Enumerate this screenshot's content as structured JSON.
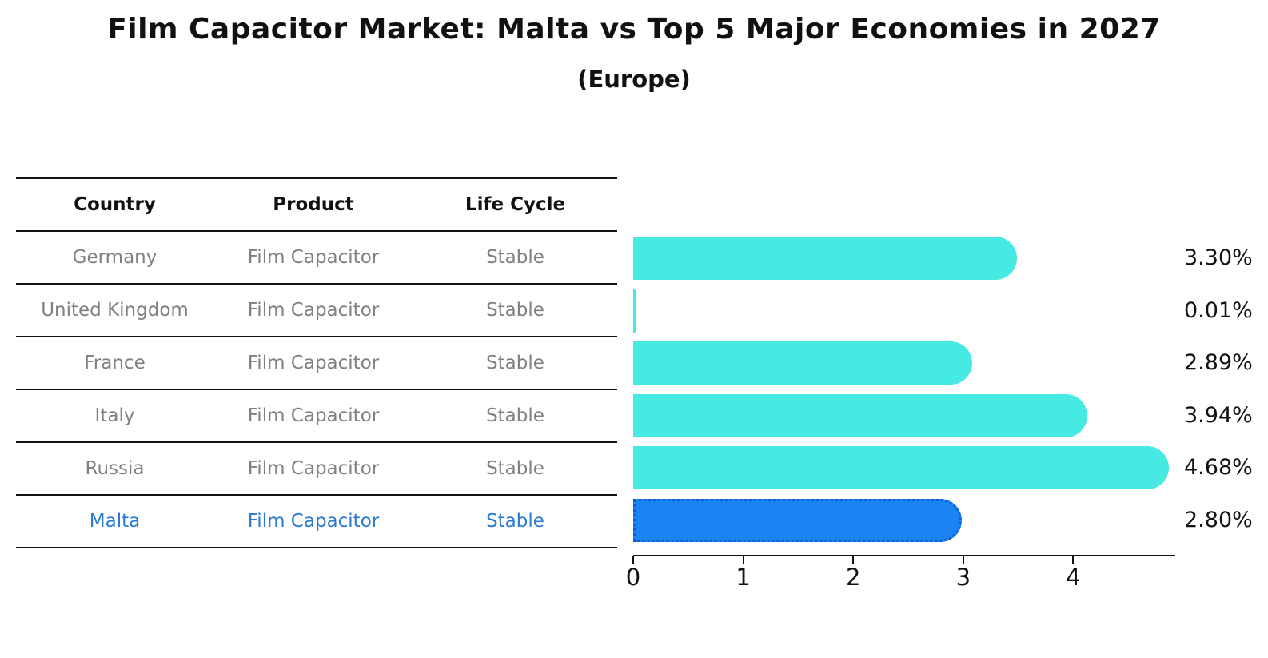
{
  "title": "Film Capacitor Market: Malta vs Top 5 Major Economies in 2027",
  "subtitle": "(Europe)",
  "table": {
    "headers": [
      "Country",
      "Product",
      "Life Cycle"
    ],
    "rows": [
      {
        "country": "Germany",
        "product": "Film Capacitor",
        "life_cycle": "Stable",
        "highlighted": false
      },
      {
        "country": "United Kingdom",
        "product": "Film Capacitor",
        "life_cycle": "Stable",
        "highlighted": false
      },
      {
        "country": "France",
        "product": "Film Capacitor",
        "life_cycle": "Stable",
        "highlighted": false
      },
      {
        "country": "Italy",
        "product": "Film Capacitor",
        "life_cycle": "Stable",
        "highlighted": false
      },
      {
        "country": "Russia",
        "product": "Film Capacitor",
        "life_cycle": "Stable",
        "highlighted": true
      }
    ],
    "highlight_row": {
      "country": "Malta",
      "product": "Film Capacitor",
      "life_cycle": "Stable"
    }
  },
  "chart_data": {
    "type": "bar",
    "orientation": "horizontal",
    "title": "Film Capacitor Market: Malta vs Top 5 Major Economies in 2027",
    "subtitle": "(Europe)",
    "categories": [
      "Germany",
      "United Kingdom",
      "France",
      "Italy",
      "Russia",
      "Malta"
    ],
    "values": [
      3.3,
      0.01,
      2.89,
      3.94,
      4.68,
      2.8
    ],
    "value_labels": [
      "3.30%",
      "0.01%",
      "2.89%",
      "3.94%",
      "4.68%",
      "2.80%"
    ],
    "highlight_index": 5,
    "xticks": [
      0,
      1,
      2,
      3,
      4
    ],
    "xlim": [
      0,
      4.93
    ],
    "grid": false,
    "legend": "none",
    "colors": {
      "bar": "#47eae2",
      "highlight_bar": "#1c83f2",
      "highlight_border": "#0d5ed8",
      "muted_text": "#808080",
      "highlight_text": "#2b7bd4",
      "axis": "#111111"
    }
  }
}
